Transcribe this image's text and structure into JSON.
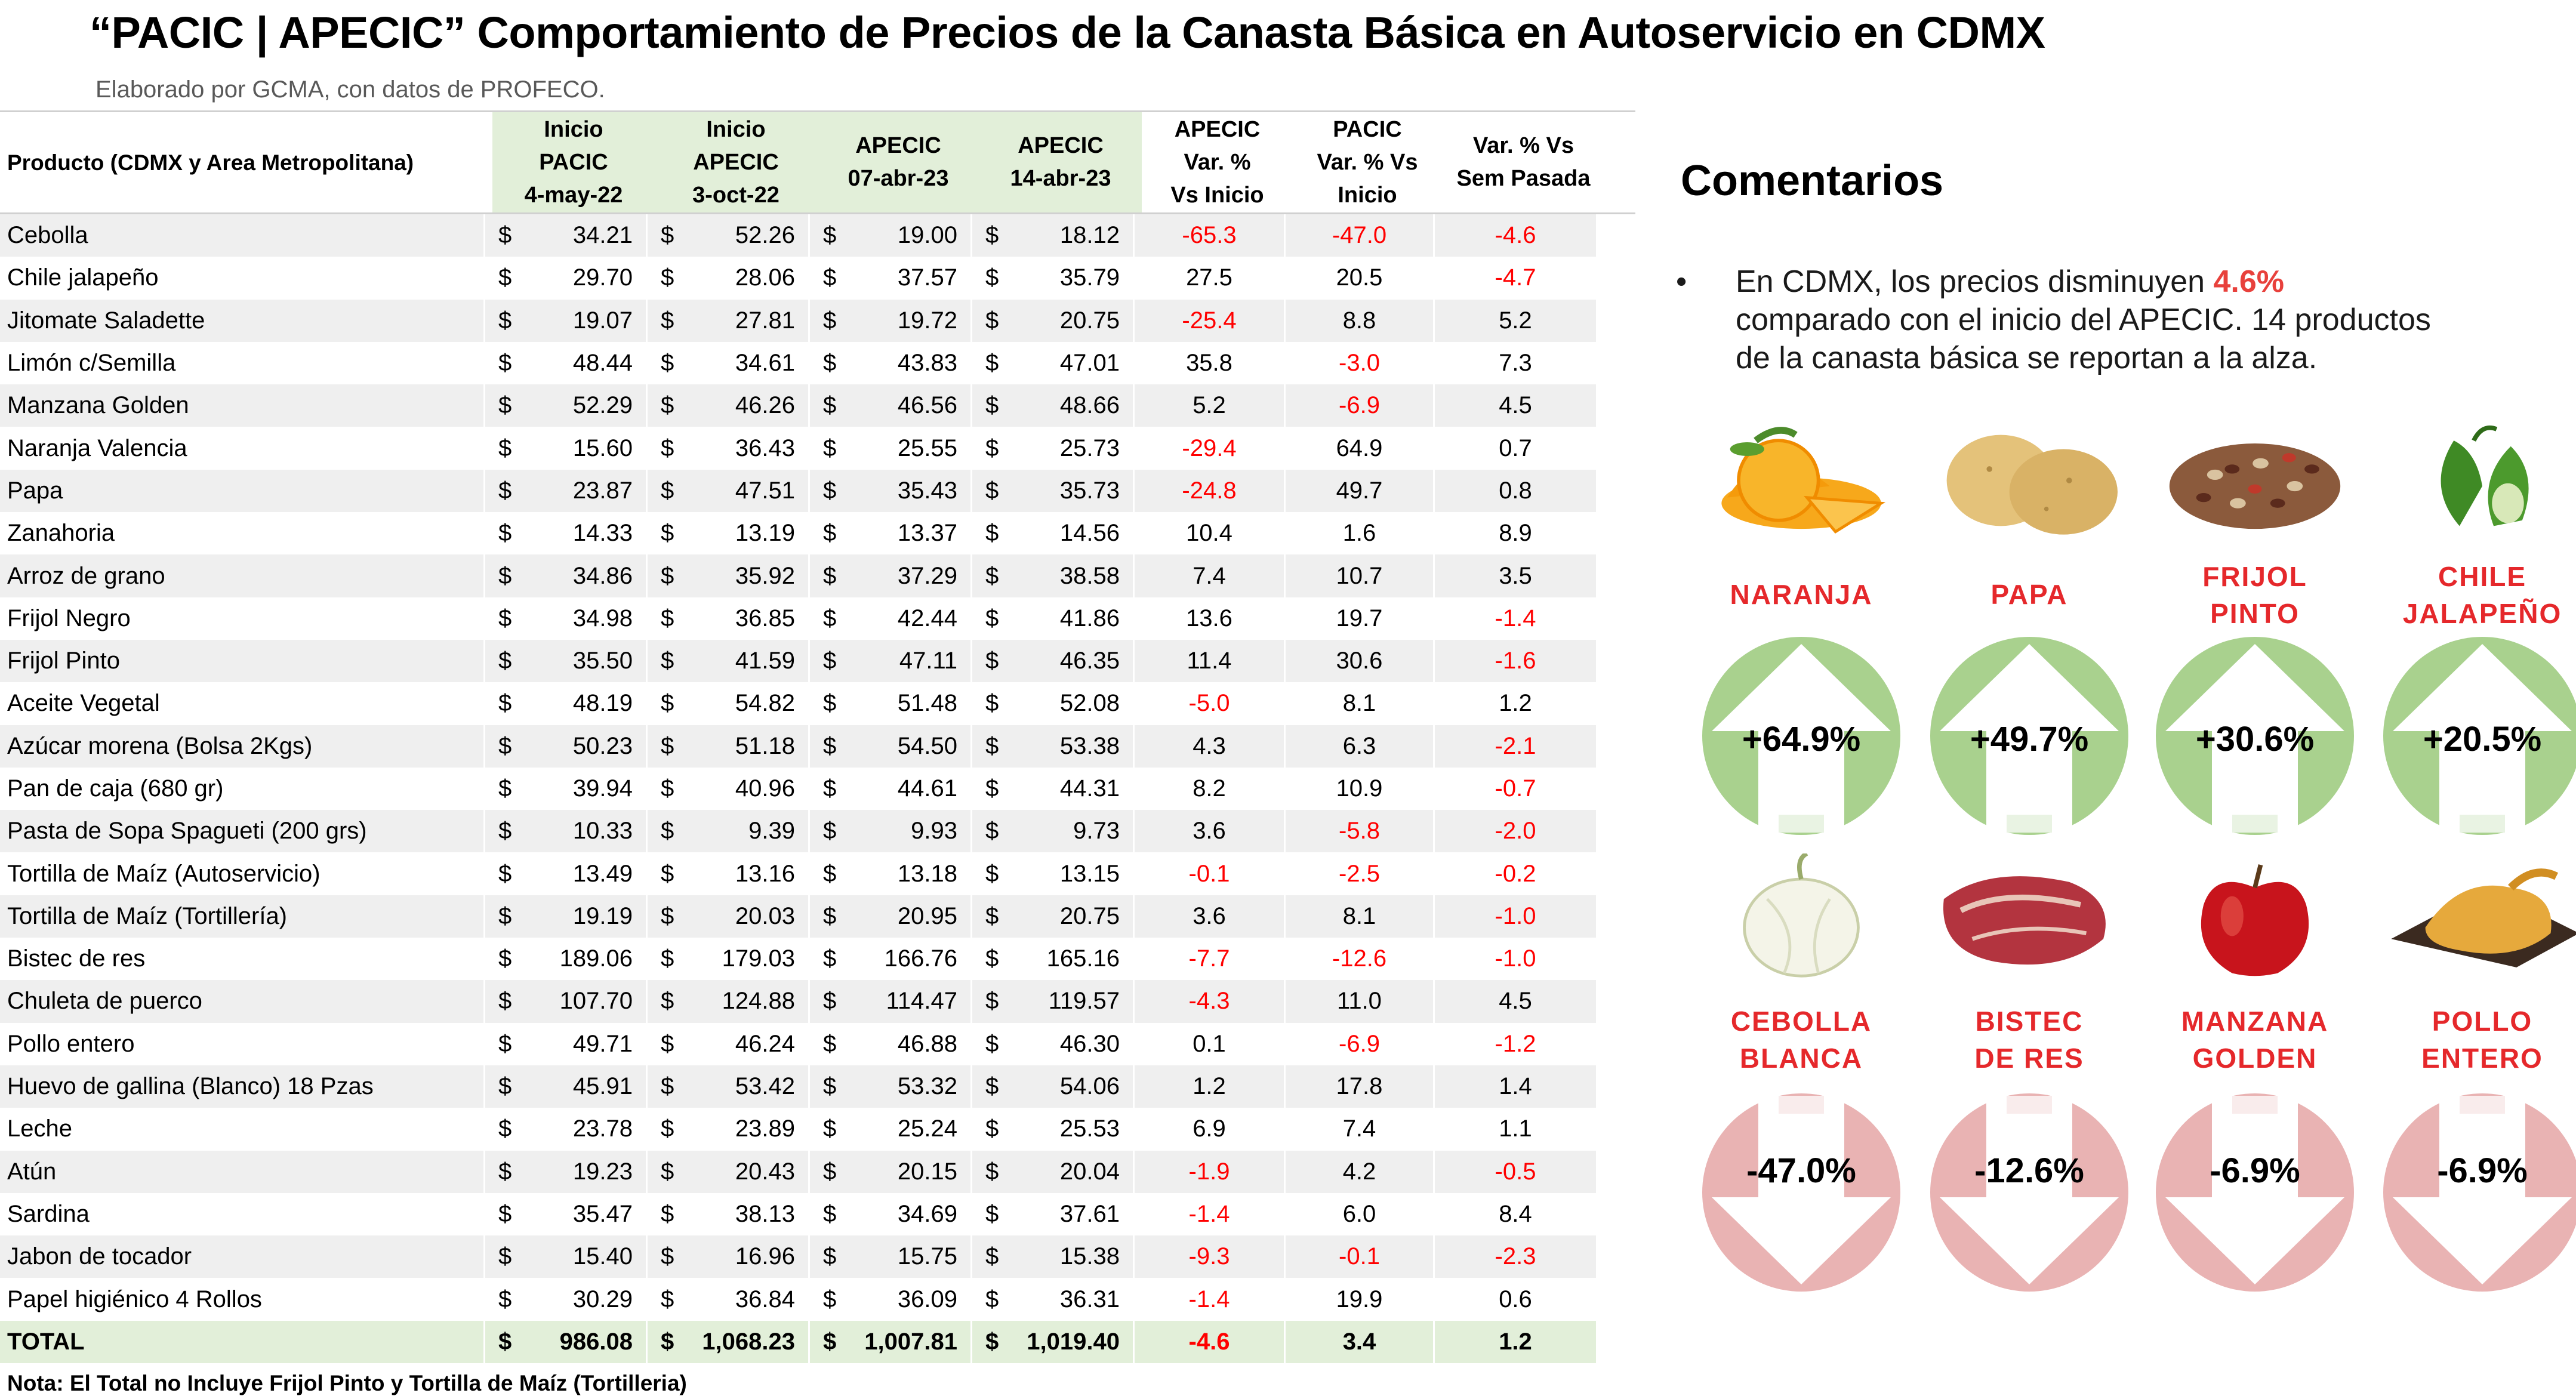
{
  "title": "“PACIC | APECIC” Comportamiento de Precios de la Canasta Básica en Autoservicio en CDMX",
  "subtitle": "Elaborado por GCMA, con datos de PROFECO.",
  "table": {
    "headers": {
      "product": "Producto (CDMX y Area Metropolitana)",
      "c1": "Inicio\nPACIC\n4-may-22",
      "c2": "Inicio\nAPECIC\n3-oct-22",
      "c3": "APECIC\n07-abr-23",
      "c4": "APECIC\n14-abr-23",
      "c5": "APECIC\nVar. %\nVs  Inicio",
      "c6": "PACIC\nVar. % Vs\nInicio",
      "c7": "Var. % Vs\nSem Pasada"
    },
    "currency": "$",
    "rows": [
      {
        "name": "Cebolla",
        "p1": "34.21",
        "p2": "52.26",
        "p3": "19.00",
        "p4": "18.12",
        "v1": "-65.3",
        "v2": "-47.0",
        "v3": "-4.6"
      },
      {
        "name": "Chile jalapeño",
        "p1": "29.70",
        "p2": "28.06",
        "p3": "37.57",
        "p4": "35.79",
        "v1": "27.5",
        "v2": "20.5",
        "v3": "-4.7"
      },
      {
        "name": "Jitomate Saladette",
        "p1": "19.07",
        "p2": "27.81",
        "p3": "19.72",
        "p4": "20.75",
        "v1": "-25.4",
        "v2": "8.8",
        "v3": "5.2"
      },
      {
        "name": "Limón c/Semilla",
        "p1": "48.44",
        "p2": "34.61",
        "p3": "43.83",
        "p4": "47.01",
        "v1": "35.8",
        "v2": "-3.0",
        "v3": "7.3"
      },
      {
        "name": "Manzana Golden",
        "p1": "52.29",
        "p2": "46.26",
        "p3": "46.56",
        "p4": "48.66",
        "v1": "5.2",
        "v2": "-6.9",
        "v3": "4.5"
      },
      {
        "name": "Naranja Valencia",
        "p1": "15.60",
        "p2": "36.43",
        "p3": "25.55",
        "p4": "25.73",
        "v1": "-29.4",
        "v2": "64.9",
        "v3": "0.7"
      },
      {
        "name": "Papa",
        "p1": "23.87",
        "p2": "47.51",
        "p3": "35.43",
        "p4": "35.73",
        "v1": "-24.8",
        "v2": "49.7",
        "v3": "0.8"
      },
      {
        "name": "Zanahoria",
        "p1": "14.33",
        "p2": "13.19",
        "p3": "13.37",
        "p4": "14.56",
        "v1": "10.4",
        "v2": "1.6",
        "v3": "8.9"
      },
      {
        "name": "Arroz de grano",
        "p1": "34.86",
        "p2": "35.92",
        "p3": "37.29",
        "p4": "38.58",
        "v1": "7.4",
        "v2": "10.7",
        "v3": "3.5"
      },
      {
        "name": "Frijol Negro",
        "p1": "34.98",
        "p2": "36.85",
        "p3": "42.44",
        "p4": "41.86",
        "v1": "13.6",
        "v2": "19.7",
        "v3": "-1.4"
      },
      {
        "name": "Frijol Pinto",
        "p1": "35.50",
        "p2": "41.59",
        "p3": "47.11",
        "p4": "46.35",
        "v1": "11.4",
        "v2": "30.6",
        "v3": "-1.6"
      },
      {
        "name": "Aceite Vegetal",
        "p1": "48.19",
        "p2": "54.82",
        "p3": "51.48",
        "p4": "52.08",
        "v1": "-5.0",
        "v2": "8.1",
        "v3": "1.2"
      },
      {
        "name": "Azúcar morena (Bolsa 2Kgs)",
        "p1": "50.23",
        "p2": "51.18",
        "p3": "54.50",
        "p4": "53.38",
        "v1": "4.3",
        "v2": "6.3",
        "v3": "-2.1"
      },
      {
        "name": "Pan de caja (680 gr)",
        "p1": "39.94",
        "p2": "40.96",
        "p3": "44.61",
        "p4": "44.31",
        "v1": "8.2",
        "v2": "10.9",
        "v3": "-0.7"
      },
      {
        "name": "Pasta de Sopa Spagueti (200 grs)",
        "p1": "10.33",
        "p2": "9.39",
        "p3": "9.93",
        "p4": "9.73",
        "v1": "3.6",
        "v2": "-5.8",
        "v3": "-2.0"
      },
      {
        "name": "Tortilla de Maíz (Autoservicio)",
        "p1": "13.49",
        "p2": "13.16",
        "p3": "13.18",
        "p4": "13.15",
        "v1": "-0.1",
        "v2": "-2.5",
        "v3": "-0.2"
      },
      {
        "name": "Tortilla de Maíz (Tortillería)",
        "p1": "19.19",
        "p2": "20.03",
        "p3": "20.95",
        "p4": "20.75",
        "v1": "3.6",
        "v2": "8.1",
        "v3": "-1.0"
      },
      {
        "name": "Bistec de res",
        "p1": "189.06",
        "p2": "179.03",
        "p3": "166.76",
        "p4": "165.16",
        "v1": "-7.7",
        "v2": "-12.6",
        "v3": "-1.0"
      },
      {
        "name": "Chuleta de puerco",
        "p1": "107.70",
        "p2": "124.88",
        "p3": "114.47",
        "p4": "119.57",
        "v1": "-4.3",
        "v2": "11.0",
        "v3": "4.5"
      },
      {
        "name": "Pollo entero",
        "p1": "49.71",
        "p2": "46.24",
        "p3": "46.88",
        "p4": "46.30",
        "v1": "0.1",
        "v2": "-6.9",
        "v3": "-1.2"
      },
      {
        "name": "Huevo de gallina (Blanco) 18 Pzas",
        "p1": "45.91",
        "p2": "53.42",
        "p3": "53.32",
        "p4": "54.06",
        "v1": "1.2",
        "v2": "17.8",
        "v3": "1.4"
      },
      {
        "name": "Leche",
        "p1": "23.78",
        "p2": "23.89",
        "p3": "25.24",
        "p4": "25.53",
        "v1": "6.9",
        "v2": "7.4",
        "v3": "1.1"
      },
      {
        "name": "Atún",
        "p1": "19.23",
        "p2": "20.43",
        "p3": "20.15",
        "p4": "20.04",
        "v1": "-1.9",
        "v2": "4.2",
        "v3": "-0.5"
      },
      {
        "name": "Sardina",
        "p1": "35.47",
        "p2": "38.13",
        "p3": "34.69",
        "p4": "37.61",
        "v1": "-1.4",
        "v2": "6.0",
        "v3": "8.4"
      },
      {
        "name": "Jabon de tocador",
        "p1": "15.40",
        "p2": "16.96",
        "p3": "15.75",
        "p4": "15.38",
        "v1": "-9.3",
        "v2": "-0.1",
        "v3": "-2.3"
      },
      {
        "name": "Papel higiénico 4 Rollos",
        "p1": "30.29",
        "p2": "36.84",
        "p3": "36.09",
        "p4": "36.31",
        "v1": "-1.4",
        "v2": "19.9",
        "v3": "0.6"
      }
    ],
    "total": {
      "name": "TOTAL",
      "p1": "986.08",
      "p2": "1,068.23",
      "p3": "1,007.81",
      "p4": "1,019.40",
      "v1": "-4.6",
      "v2": "3.4",
      "v3": "1.2"
    }
  },
  "note": "Nota: El Total no Incluye Frijol Pinto y Tortilla de Maíz (Tortilleria)",
  "comments": {
    "title": "Comentarios",
    "bullet_symbol": "•",
    "text_before": "En CDMX, los precios disminuyen ",
    "highlight": "4.6%",
    "text_after": " comparado con el inicio del APECIC. 14 productos de la canasta básica se reportan a la alza."
  },
  "colors": {
    "up_circle": "#a9d18e",
    "down_circle": "#e9b3b3",
    "label_red": "#e5282b",
    "negative": "#ff0000",
    "header_green": "#e2efd9"
  },
  "increases": [
    {
      "label": "NARANJA",
      "pct": "+64.9%",
      "icon": "orange-icon"
    },
    {
      "label": "PAPA",
      "pct": "+49.7%",
      "icon": "potato-icon"
    },
    {
      "label": "FRIJOL\nPINTO",
      "pct": "+30.6%",
      "icon": "beans-icon"
    },
    {
      "label": "CHILE\nJALAPEÑO",
      "pct": "+20.5%",
      "icon": "jalapeno-icon"
    }
  ],
  "decreases": [
    {
      "label": "CEBOLLA\nBLANCA",
      "pct": "-47.0%",
      "icon": "onion-icon"
    },
    {
      "label": "BISTEC\nDE RES",
      "pct": "-12.6%",
      "icon": "steak-icon"
    },
    {
      "label": "MANZANA\nGOLDEN",
      "pct": "-6.9%",
      "icon": "apple-icon"
    },
    {
      "label": "POLLO\nENTERO",
      "pct": "-6.9%",
      "icon": "chicken-icon"
    }
  ]
}
